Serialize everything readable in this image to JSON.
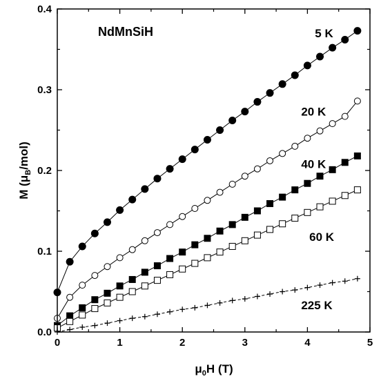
{
  "chart_data": {
    "type": "line",
    "title": "NdMnSiH",
    "xlabel": {
      "main": "μ",
      "sub": "0",
      "rest": "H (T)"
    },
    "ylabel": {
      "main": "M (μ",
      "sub": "B",
      "rest": "/mol)"
    },
    "xlim": [
      0,
      5
    ],
    "ylim": [
      0,
      0.4
    ],
    "xticks": [
      0,
      1,
      2,
      3,
      4,
      5
    ],
    "xtick_labels": [
      "0",
      "1",
      "2",
      "3",
      "4",
      "5"
    ],
    "yticks": [
      0,
      0.1,
      0.2,
      0.3,
      0.4
    ],
    "ytick_labels": [
      "0.0",
      "0.1",
      "0.2",
      "0.3",
      "0.4"
    ],
    "grid": false,
    "x": [
      0.0,
      0.2,
      0.4,
      0.6,
      0.8,
      1.0,
      1.2,
      1.4,
      1.6,
      1.8,
      2.0,
      2.2,
      2.4,
      2.6,
      2.8,
      3.0,
      3.2,
      3.4,
      3.6,
      3.8,
      4.0,
      4.2,
      4.4,
      4.6,
      4.8
    ],
    "series": [
      {
        "name": "5 K",
        "marker": "filled-circle",
        "values": [
          0.049,
          0.087,
          0.106,
          0.122,
          0.136,
          0.151,
          0.164,
          0.177,
          0.19,
          0.202,
          0.214,
          0.226,
          0.238,
          0.25,
          0.262,
          0.273,
          0.285,
          0.296,
          0.307,
          0.318,
          0.33,
          0.341,
          0.352,
          0.362,
          0.373
        ]
      },
      {
        "name": "20 K",
        "marker": "open-circle",
        "values": [
          0.017,
          0.043,
          0.058,
          0.07,
          0.081,
          0.092,
          0.102,
          0.113,
          0.123,
          0.133,
          0.143,
          0.153,
          0.163,
          0.173,
          0.183,
          0.193,
          0.202,
          0.212,
          0.221,
          0.23,
          0.24,
          0.249,
          0.258,
          0.267,
          0.286
        ]
      },
      {
        "name": "40 K",
        "marker": "filled-square",
        "values": [
          0.008,
          0.02,
          0.03,
          0.04,
          0.048,
          0.057,
          0.065,
          0.074,
          0.082,
          0.091,
          0.099,
          0.108,
          0.116,
          0.125,
          0.133,
          0.142,
          0.15,
          0.159,
          0.167,
          0.176,
          0.184,
          0.193,
          0.201,
          0.21,
          0.218
        ]
      },
      {
        "name": "60 K",
        "marker": "open-square",
        "values": [
          0.005,
          0.013,
          0.021,
          0.029,
          0.036,
          0.043,
          0.05,
          0.057,
          0.064,
          0.071,
          0.078,
          0.085,
          0.092,
          0.099,
          0.106,
          0.113,
          0.12,
          0.127,
          0.134,
          0.141,
          0.148,
          0.155,
          0.162,
          0.169,
          0.176
        ]
      },
      {
        "name": "225 K",
        "marker": "plus",
        "values": [
          0.0,
          0.003,
          0.006,
          0.008,
          0.011,
          0.014,
          0.017,
          0.019,
          0.022,
          0.025,
          0.028,
          0.03,
          0.033,
          0.036,
          0.039,
          0.041,
          0.044,
          0.047,
          0.05,
          0.052,
          0.055,
          0.058,
          0.061,
          0.063,
          0.066
        ]
      }
    ],
    "series_label_positions": [
      {
        "name": "5 K",
        "x": 4.12,
        "y": 0.365
      },
      {
        "name": "20 K",
        "x": 3.9,
        "y": 0.268
      },
      {
        "name": "40 K",
        "x": 3.9,
        "y": 0.203
      },
      {
        "name": "60 K",
        "x": 4.03,
        "y": 0.113
      },
      {
        "name": "225 K",
        "x": 3.9,
        "y": 0.028
      }
    ]
  }
}
